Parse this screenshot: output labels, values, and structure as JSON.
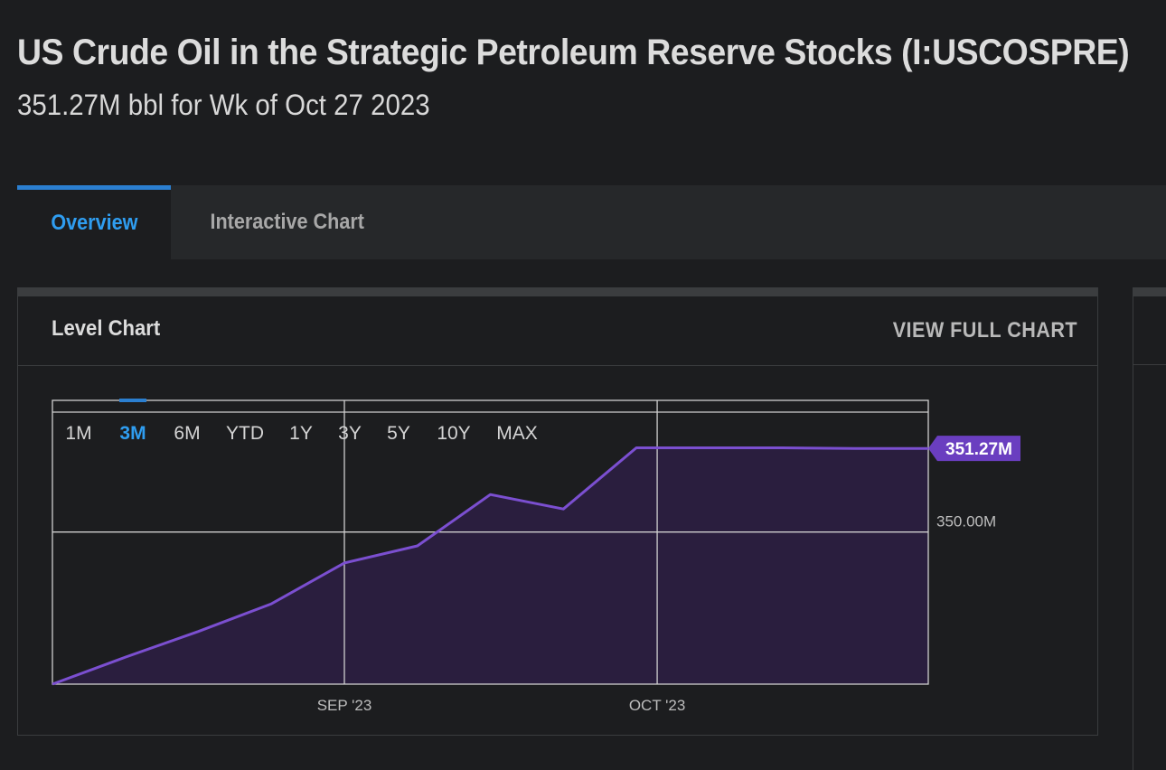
{
  "header": {
    "title": "US Crude Oil in the Strategic Petroleum Reserve Stocks (I:USCOSPRE)",
    "subtitle": "351.27M bbl for Wk of Oct 27 2023"
  },
  "tabs": [
    {
      "label": "Overview",
      "active": true
    },
    {
      "label": "Interactive Chart",
      "active": false
    }
  ],
  "card": {
    "title": "Level Chart",
    "link_label": "VIEW FULL CHART"
  },
  "range_buttons": [
    {
      "label": "1M",
      "active": false
    },
    {
      "label": "3M",
      "active": true
    },
    {
      "label": "6M",
      "active": false
    },
    {
      "label": "YTD",
      "active": false
    },
    {
      "label": "1Y",
      "active": false
    },
    {
      "label": "3Y",
      "active": false
    },
    {
      "label": "5Y",
      "active": false
    },
    {
      "label": "10Y",
      "active": false
    },
    {
      "label": "MAX",
      "active": false
    }
  ],
  "colors": {
    "accent_blue": "#2f9df0",
    "line_purple": "#7b4fd0",
    "fill_purple": "#2a1e3e",
    "badge_purple": "#6a3ec0"
  },
  "chart_data": {
    "type": "area",
    "x": [
      "2023-08-04",
      "2023-08-11",
      "2023-08-18",
      "2023-08-25",
      "2023-09-01",
      "2023-09-08",
      "2023-09-15",
      "2023-09-22",
      "2023-09-29",
      "2023-10-06",
      "2023-10-13",
      "2023-10-20",
      "2023-10-27"
    ],
    "y": [
      347.69,
      348.1,
      348.49,
      348.91,
      349.53,
      349.79,
      350.57,
      350.35,
      351.28,
      351.28,
      351.28,
      351.27,
      351.27
    ],
    "x_ticks": [
      {
        "date": "2023-09-01",
        "label": "SEP '23"
      },
      {
        "date": "2023-10-01",
        "label": "OCT '23"
      }
    ],
    "y_ticks": [
      {
        "value": 350.0,
        "label": "350.00M"
      }
    ],
    "last_value_label": "351.27M",
    "x_range": [
      "2023-08-04",
      "2023-10-27"
    ],
    "ylim": [
      347.69,
      352.0
    ],
    "grid": true,
    "title": "",
    "xlabel": "",
    "ylabel": ""
  }
}
